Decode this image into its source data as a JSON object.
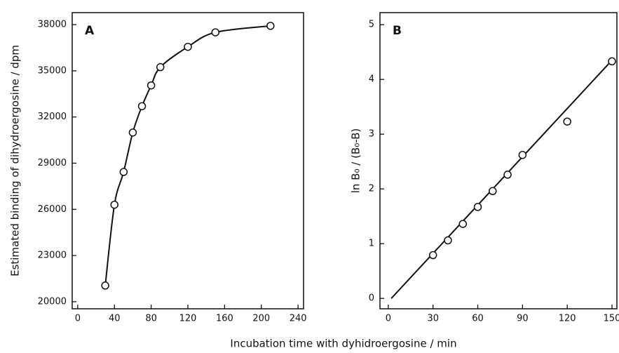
{
  "shared_xlabel": "Incubation time with dyhidroergosine / min",
  "chart_data": [
    {
      "type": "line",
      "panel": "A",
      "ylabel": "Estimated binding of dihydroergosine / dpm",
      "x": [
        30,
        40,
        50,
        60,
        70,
        80,
        90,
        120,
        150,
        210
      ],
      "series": [
        {
          "color": "#111111",
          "values": [
            21050,
            26300,
            28430,
            30990,
            32700,
            34050,
            35240,
            36560,
            37500,
            37920
          ]
        }
      ],
      "xlim": [
        -6,
        246
      ],
      "xticks": [
        0,
        40,
        80,
        120,
        160,
        200,
        240
      ],
      "ylim": [
        19540,
        38780
      ],
      "yticks": [
        20000,
        23000,
        26000,
        29000,
        32000,
        35000,
        38000
      ]
    },
    {
      "type": "scatter",
      "panel": "B",
      "ylabel": "ln B₀ / (B₀-B)",
      "x": [
        30,
        40,
        50,
        60,
        70,
        80,
        90,
        120,
        150
      ],
      "series": [
        {
          "color": "#111111",
          "values": [
            0.79,
            1.06,
            1.36,
            1.67,
            1.96,
            2.26,
            2.62,
            3.23,
            4.33
          ]
        }
      ],
      "fit": {
        "x": [
          2,
          150
        ],
        "y": [
          0,
          4.35
        ]
      },
      "xlim": [
        -5.6,
        153.3
      ],
      "xticks": [
        0,
        30,
        60,
        90,
        120,
        150
      ],
      "ylim": [
        -0.19,
        5.22
      ],
      "yticks": [
        0,
        1,
        2,
        3,
        4,
        5
      ]
    }
  ]
}
